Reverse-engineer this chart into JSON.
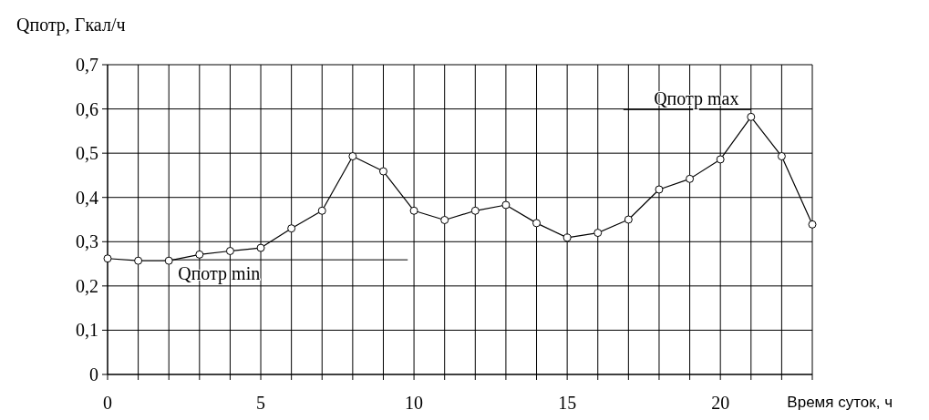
{
  "chart_data": {
    "type": "line",
    "xlabel": "Время суток, ч",
    "ylabel": "Qпотр, Гкал/ч",
    "x": [
      0,
      1,
      2,
      3,
      4,
      5,
      6,
      7,
      8,
      9,
      10,
      11,
      12,
      13,
      14,
      15,
      16,
      17,
      18,
      19,
      20,
      21,
      22,
      23
    ],
    "series": [
      {
        "color": "#000000",
        "values": [
          0.262,
          0.257,
          0.257,
          0.271,
          0.279,
          0.286,
          0.33,
          0.37,
          0.493,
          0.459,
          0.37,
          0.349,
          0.37,
          0.383,
          0.342,
          0.309,
          0.32,
          0.35,
          0.418,
          0.442,
          0.486,
          0.582,
          0.493,
          0.339
        ]
      }
    ],
    "xlim": [
      0,
      23
    ],
    "xticks": [
      0,
      {
        "value": 1,
        "label": null
      },
      {
        "value": 2,
        "label": null
      },
      {
        "value": 3,
        "label": null
      },
      {
        "value": 4,
        "label": null
      },
      5,
      {
        "value": 6,
        "label": null
      },
      {
        "value": 7,
        "label": null
      },
      {
        "value": 8,
        "label": null
      },
      {
        "value": 9,
        "label": null
      },
      10,
      {
        "value": 11,
        "label": null
      },
      {
        "value": 12,
        "label": null
      },
      {
        "value": 13,
        "label": null
      },
      {
        "value": 14,
        "label": null
      },
      15,
      {
        "value": 16,
        "label": null
      },
      {
        "value": 17,
        "label": null
      },
      {
        "value": 18,
        "label": null
      },
      {
        "value": 19,
        "label": null
      },
      20,
      {
        "value": 21,
        "label": null
      },
      {
        "value": 22,
        "label": null
      },
      {
        "value": 23,
        "label": null
      }
    ],
    "ylim": [
      0,
      0.7
    ],
    "yticks": [
      0,
      {
        "value": 0.1,
        "label": "0,1"
      },
      {
        "value": 0.2,
        "label": "0,2"
      },
      {
        "value": 0.3,
        "label": "0,3"
      },
      {
        "value": 0.4,
        "label": "0,4"
      },
      {
        "value": 0.5,
        "label": "0,5"
      },
      {
        "value": 0.6,
        "label": "0,6"
      },
      {
        "value": 0.7,
        "label": "0,7"
      }
    ],
    "grid": true,
    "marker": "circle",
    "line_style": "solid",
    "annotations": [
      {
        "text": "Qпотр max",
        "x": 21,
        "y": 0.582
      },
      {
        "text": "Qпотр min",
        "x": 2,
        "y": 0.257
      }
    ]
  }
}
